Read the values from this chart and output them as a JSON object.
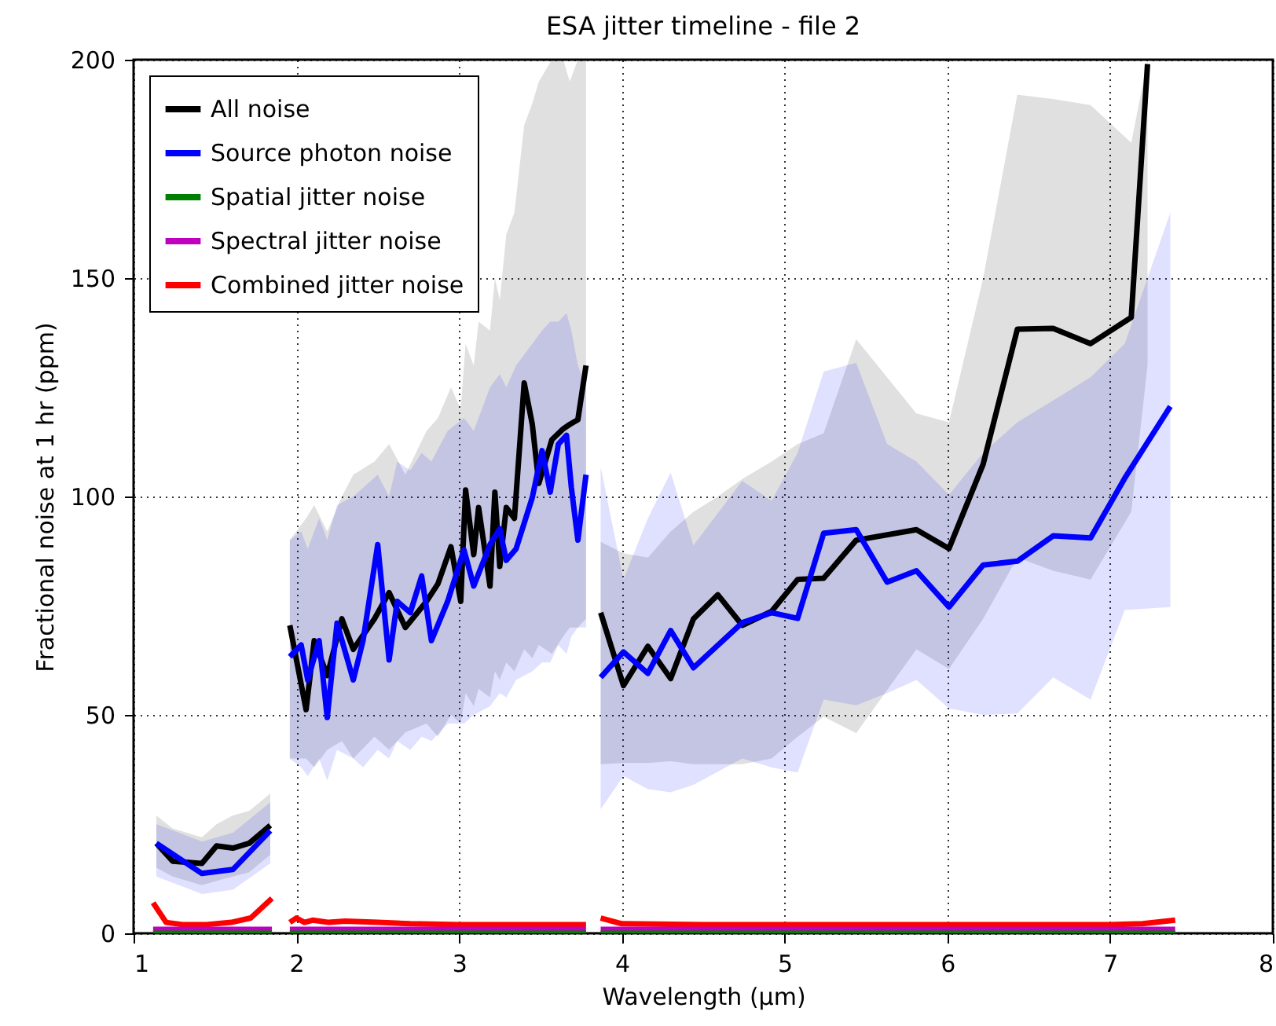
{
  "chart_data": {
    "type": "line",
    "title": "ESA jitter timeline - file 2",
    "xlabel": "Wavelength (μm)",
    "ylabel": "Fractional noise at 1 hr (ppm)",
    "xlim": [
      1,
      8
    ],
    "xticks": [
      1,
      2,
      3,
      4,
      5,
      6,
      7,
      8
    ],
    "ylim": [
      0,
      200
    ],
    "yticks": [
      0,
      50,
      100,
      150,
      200
    ],
    "grid": true,
    "legend": "top left",
    "line_style": "solid",
    "series": [
      {
        "name": "All noise",
        "color": "#000000",
        "x": [
          1.14,
          1.24,
          1.42,
          1.51,
          1.61,
          1.71,
          1.84,
          1.9,
          1.96,
          2.06,
          2.11,
          2.19,
          2.28,
          2.35,
          2.48,
          2.57,
          2.67,
          2.8,
          2.87,
          2.95,
          3.01,
          3.04,
          3.09,
          3.12,
          3.19,
          3.22,
          3.25,
          3.29,
          3.34,
          3.4,
          3.45,
          3.49,
          3.57,
          3.64,
          3.68,
          3.73,
          3.78,
          3.83,
          3.87,
          4.01,
          4.16,
          4.3,
          4.44,
          4.59,
          4.74,
          4.92,
          5.08,
          5.24,
          5.44,
          5.81,
          6.01,
          6.22,
          6.43,
          6.65,
          6.88,
          7.13,
          7.23
        ],
        "values": [
          20.6,
          16.5,
          16,
          20,
          19.5,
          20.6,
          24.7,
          null,
          70.5,
          51.2,
          67,
          59,
          72,
          65,
          72,
          78,
          70,
          76,
          80,
          88.5,
          76,
          101.5,
          86.7,
          97.5,
          79.5,
          101,
          84,
          97.5,
          95,
          126,
          116.5,
          103,
          113,
          115.5,
          116.5,
          117.6,
          130,
          null,
          73.4,
          56.7,
          65.7,
          58.3,
          72,
          77.5,
          70.5,
          73.7,
          81,
          81.3,
          90,
          92.4,
          88.1,
          107.4,
          138.3,
          138.5,
          135,
          141,
          199
        ],
        "lower": [
          15,
          13,
          11,
          12,
          13,
          14,
          18,
          null,
          40,
          40,
          38,
          42,
          44,
          40,
          45,
          42,
          46,
          48,
          45,
          50,
          48,
          55,
          52,
          56,
          54,
          60,
          58,
          62,
          60,
          65,
          63,
          66,
          64,
          68,
          70,
          70,
          72,
          null,
          38.7,
          39,
          39,
          39.4,
          38.7,
          38.7,
          38.7,
          40,
          45,
          49.6,
          45.8,
          65,
          60.5,
          72,
          86,
          83,
          81,
          96.5,
          130
        ],
        "upper": [
          27,
          24,
          22,
          25,
          27,
          28,
          32,
          null,
          90,
          95,
          98,
          92,
          100,
          105,
          108,
          112,
          105,
          115,
          118,
          125,
          120,
          135,
          130,
          140,
          138,
          150,
          145,
          160,
          165,
          185,
          190,
          195,
          200,
          200,
          195,
          200,
          200,
          null,
          89.6,
          87,
          86,
          92,
          96.5,
          100,
          104,
          108,
          112,
          114.5,
          136,
          119,
          117,
          150,
          192,
          191,
          189.6,
          181,
          200
        ]
      },
      {
        "name": "Source photon noise",
        "color": "#0000ff",
        "x": [
          1.14,
          1.42,
          1.61,
          1.84,
          1.9,
          1.96,
          2.03,
          2.07,
          2.14,
          2.19,
          2.25,
          2.35,
          2.41,
          2.5,
          2.57,
          2.62,
          2.7,
          2.77,
          2.83,
          2.93,
          3.03,
          3.09,
          3.19,
          3.25,
          3.29,
          3.35,
          3.45,
          3.51,
          3.56,
          3.61,
          3.66,
          3.69,
          3.73,
          3.78,
          3.83,
          3.87,
          4.01,
          4.16,
          4.3,
          4.44,
          4.74,
          4.92,
          5.08,
          5.24,
          5.44,
          5.63,
          5.81,
          6.01,
          6.22,
          6.43,
          6.65,
          6.88,
          7.09,
          7.37
        ],
        "values": [
          20.6,
          13.7,
          14.6,
          23.5,
          null,
          63.3,
          66,
          58,
          67,
          49.4,
          71,
          58,
          67,
          89,
          62.6,
          76,
          73.4,
          81.8,
          67,
          76,
          87.8,
          79.5,
          89,
          92.6,
          85.4,
          88,
          99.8,
          110.5,
          101,
          112,
          114,
          102,
          90,
          105,
          null,
          58.6,
          64.4,
          59.5,
          69.3,
          60.8,
          71.1,
          73.4,
          72.1,
          91.6,
          92.4,
          80.4,
          83,
          74.7,
          84.3,
          85.2,
          91,
          90.5,
          104.2,
          120.6
        ],
        "lower": [
          13,
          9,
          10,
          16,
          null,
          40,
          38,
          36,
          40,
          35,
          42,
          40,
          38,
          42,
          40,
          44,
          42,
          45,
          44,
          48,
          48,
          50,
          52,
          55,
          54,
          58,
          60,
          62,
          62,
          66,
          64,
          68,
          70,
          70,
          null,
          28.4,
          36,
          33,
          32.3,
          34,
          40,
          38,
          36.8,
          53.5,
          52.2,
          55,
          58,
          51.5,
          50,
          50.3,
          58.6,
          53.5,
          74,
          74.7
        ],
        "upper": [
          25,
          21,
          23,
          30,
          null,
          90,
          92,
          88,
          95,
          90,
          98,
          100,
          102,
          105,
          100,
          108,
          106,
          110,
          108,
          115,
          118,
          115,
          125,
          128,
          125,
          130,
          135,
          138,
          140,
          140,
          142,
          138,
          130,
          125,
          null,
          106.8,
          81,
          95,
          105.5,
          88.8,
          103.6,
          99,
          110,
          128.6,
          130.6,
          112,
          108,
          100.4,
          110,
          117,
          122,
          127.3,
          135,
          165
        ]
      },
      {
        "name": "Spatial jitter noise",
        "color": "#008000",
        "x": [
          1.12,
          1.85,
          1.9,
          1.96,
          3.78,
          3.83,
          3.87,
          7.4
        ],
        "values": [
          0,
          0,
          null,
          0,
          0,
          null,
          0,
          0
        ]
      },
      {
        "name": "Spectral jitter noise",
        "color": "#bf00bf",
        "x": [
          1.12,
          1.85,
          1.9,
          1.96,
          3.78,
          3.83,
          3.87,
          7.4
        ],
        "values": [
          0.9,
          0.9,
          null,
          0.9,
          0.9,
          null,
          0.9,
          0.9
        ]
      },
      {
        "name": "Combined jitter noise",
        "color": "#ff0000",
        "x": [
          1.12,
          1.2,
          1.3,
          1.45,
          1.6,
          1.72,
          1.85,
          1.9,
          1.96,
          2.0,
          2.05,
          2.1,
          2.2,
          2.3,
          2.5,
          2.7,
          3.0,
          3.3,
          3.6,
          3.78,
          3.83,
          3.87,
          4.0,
          4.5,
          5,
          6,
          7,
          7.2,
          7.4
        ],
        "values": [
          7,
          2.5,
          2,
          2,
          2.5,
          3.5,
          8,
          null,
          2.5,
          3.5,
          2.5,
          3,
          2.5,
          2.8,
          2.5,
          2.2,
          2,
          2,
          2,
          2,
          null,
          3.5,
          2.2,
          2,
          2,
          2,
          2,
          2.2,
          3
        ]
      }
    ]
  }
}
